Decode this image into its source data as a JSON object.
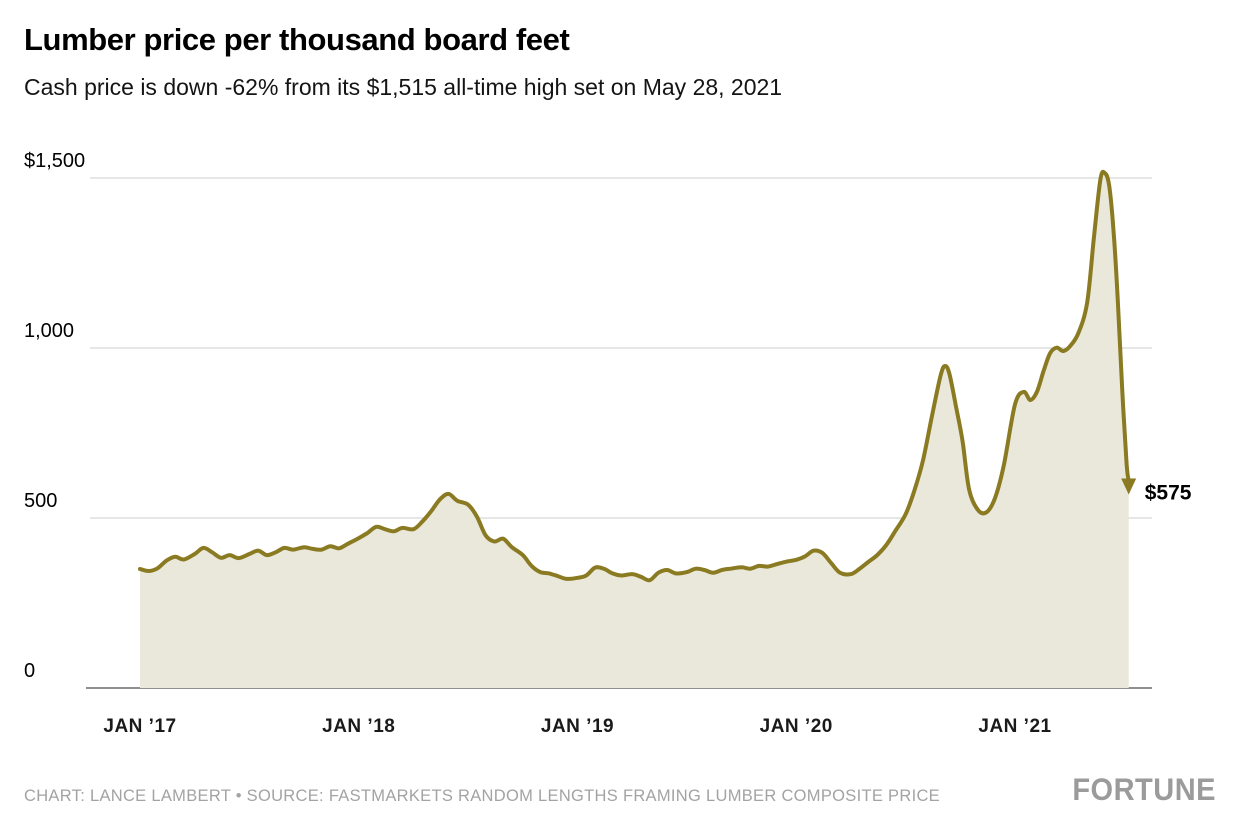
{
  "chart_data": {
    "type": "area",
    "title": "Lumber price per thousand board feet",
    "subtitle": "Cash price is down -62% from its $1,515 all-time high set on May 28, 2021",
    "xlabel": "",
    "ylabel": "",
    "ylim": [
      0,
      1500
    ],
    "xlim": [
      2017.0,
      2021.6
    ],
    "grid": true,
    "legend": false,
    "yticks": [
      {
        "value": 1500,
        "label": "$1,500"
      },
      {
        "value": 1000,
        "label": "1,000"
      },
      {
        "value": 500,
        "label": "500"
      },
      {
        "value": 0,
        "label": "0"
      }
    ],
    "xticks": [
      {
        "value": 2017,
        "label": "JAN ’17"
      },
      {
        "value": 2018,
        "label": "JAN ’18"
      },
      {
        "value": 2019,
        "label": "JAN ’19"
      },
      {
        "value": 2020,
        "label": "JAN ’20"
      },
      {
        "value": 2021,
        "label": "JAN ’21"
      }
    ],
    "series": [
      {
        "name": "Lumber cash price ($ per thousand board feet)",
        "points": [
          [
            2017.0,
            350
          ],
          [
            2017.04,
            344
          ],
          [
            2017.08,
            352
          ],
          [
            2017.12,
            374
          ],
          [
            2017.16,
            386
          ],
          [
            2017.2,
            378
          ],
          [
            2017.25,
            394
          ],
          [
            2017.29,
            412
          ],
          [
            2017.33,
            399
          ],
          [
            2017.37,
            383
          ],
          [
            2017.41,
            391
          ],
          [
            2017.45,
            382
          ],
          [
            2017.5,
            394
          ],
          [
            2017.54,
            404
          ],
          [
            2017.58,
            391
          ],
          [
            2017.62,
            399
          ],
          [
            2017.66,
            412
          ],
          [
            2017.7,
            407
          ],
          [
            2017.75,
            414
          ],
          [
            2017.79,
            409
          ],
          [
            2017.83,
            407
          ],
          [
            2017.87,
            417
          ],
          [
            2017.91,
            411
          ],
          [
            2017.95,
            424
          ],
          [
            2018.0,
            441
          ],
          [
            2018.04,
            456
          ],
          [
            2018.08,
            474
          ],
          [
            2018.12,
            467
          ],
          [
            2018.16,
            461
          ],
          [
            2018.2,
            471
          ],
          [
            2018.25,
            467
          ],
          [
            2018.29,
            489
          ],
          [
            2018.33,
            519
          ],
          [
            2018.37,
            554
          ],
          [
            2018.41,
            571
          ],
          [
            2018.45,
            551
          ],
          [
            2018.5,
            539
          ],
          [
            2018.54,
            504
          ],
          [
            2018.58,
            449
          ],
          [
            2018.62,
            431
          ],
          [
            2018.66,
            439
          ],
          [
            2018.7,
            414
          ],
          [
            2018.75,
            391
          ],
          [
            2018.79,
            359
          ],
          [
            2018.83,
            341
          ],
          [
            2018.87,
            337
          ],
          [
            2018.91,
            329
          ],
          [
            2018.95,
            321
          ],
          [
            2019.0,
            324
          ],
          [
            2019.04,
            331
          ],
          [
            2019.08,
            354
          ],
          [
            2019.12,
            351
          ],
          [
            2019.16,
            337
          ],
          [
            2019.2,
            331
          ],
          [
            2019.25,
            335
          ],
          [
            2019.29,
            327
          ],
          [
            2019.33,
            317
          ],
          [
            2019.37,
            339
          ],
          [
            2019.41,
            347
          ],
          [
            2019.45,
            337
          ],
          [
            2019.5,
            341
          ],
          [
            2019.54,
            351
          ],
          [
            2019.58,
            347
          ],
          [
            2019.62,
            339
          ],
          [
            2019.66,
            347
          ],
          [
            2019.7,
            351
          ],
          [
            2019.75,
            355
          ],
          [
            2019.79,
            351
          ],
          [
            2019.83,
            359
          ],
          [
            2019.87,
            357
          ],
          [
            2019.91,
            364
          ],
          [
            2019.95,
            371
          ],
          [
            2020.0,
            377
          ],
          [
            2020.04,
            387
          ],
          [
            2020.08,
            404
          ],
          [
            2020.12,
            397
          ],
          [
            2020.16,
            367
          ],
          [
            2020.2,
            339
          ],
          [
            2020.25,
            335
          ],
          [
            2020.29,
            351
          ],
          [
            2020.33,
            371
          ],
          [
            2020.37,
            391
          ],
          [
            2020.41,
            419
          ],
          [
            2020.45,
            459
          ],
          [
            2020.5,
            511
          ],
          [
            2020.54,
            581
          ],
          [
            2020.58,
            671
          ],
          [
            2020.62,
            799
          ],
          [
            2020.66,
            919
          ],
          [
            2020.68,
            947
          ],
          [
            2020.7,
            924
          ],
          [
            2020.73,
            829
          ],
          [
            2020.76,
            727
          ],
          [
            2020.79,
            584
          ],
          [
            2020.83,
            524
          ],
          [
            2020.87,
            517
          ],
          [
            2020.91,
            561
          ],
          [
            2020.95,
            659
          ],
          [
            2021.0,
            834
          ],
          [
            2021.04,
            871
          ],
          [
            2021.07,
            847
          ],
          [
            2021.1,
            871
          ],
          [
            2021.13,
            931
          ],
          [
            2021.16,
            984
          ],
          [
            2021.19,
            1001
          ],
          [
            2021.22,
            991
          ],
          [
            2021.25,
            1004
          ],
          [
            2021.29,
            1044
          ],
          [
            2021.33,
            1134
          ],
          [
            2021.36,
            1319
          ],
          [
            2021.39,
            1494
          ],
          [
            2021.41,
            1515
          ],
          [
            2021.43,
            1479
          ],
          [
            2021.45,
            1349
          ],
          [
            2021.47,
            1139
          ],
          [
            2021.49,
            879
          ],
          [
            2021.51,
            659
          ],
          [
            2021.52,
            575
          ]
        ]
      }
    ],
    "annotation": {
      "label": "$575",
      "value": 575,
      "x": 2021.52,
      "marker": "down-arrow"
    },
    "colors": {
      "line": "#8a7a22",
      "fill": "#eae8da",
      "grid": "#cccccc",
      "axis": "#8f8f8f",
      "annotation_text": "#000000",
      "tick_label": "#1a1a1a",
      "footer_text": "#a3a3a3"
    },
    "credit": "CHART: LANCE LAMBERT • SOURCE: FASTMARKETS RANDOM LENGTHS FRAMING LUMBER COMPOSITE PRICE",
    "logo": "FORTUNE"
  }
}
